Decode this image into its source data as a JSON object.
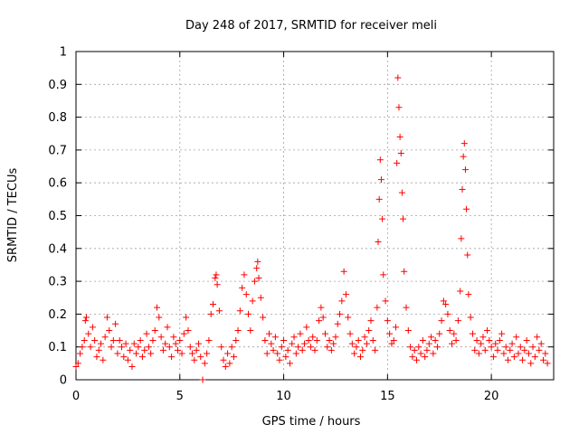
{
  "chart_data": {
    "type": "scatter",
    "title": "Day 248 of 2017, SRMTID for receiver meli",
    "xlabel": "GPS time / hours",
    "ylabel": "SRMTID / TECUs",
    "xlim": [
      0,
      23
    ],
    "ylim": [
      0,
      1
    ],
    "x_ticks": [
      0,
      5,
      10,
      15,
      20
    ],
    "x_tick_labels": [
      "0",
      "5",
      "10",
      "15",
      "20"
    ],
    "y_ticks": [
      0,
      0.1,
      0.2,
      0.3,
      0.4,
      0.5,
      0.6,
      0.7,
      0.8,
      0.9,
      1
    ],
    "y_tick_labels": [
      "0",
      "0.1",
      "0.2",
      "0.3",
      "0.4",
      "0.5",
      "0.6",
      "0.7",
      "0.8",
      "0.9",
      "1"
    ],
    "grid": true,
    "marker": "+",
    "color": "#ff0000",
    "series": [
      {
        "name": "SRMTID",
        "points": [
          [
            0.0,
            0.04
          ],
          [
            0.1,
            0.05
          ],
          [
            0.2,
            0.08
          ],
          [
            0.3,
            0.1
          ],
          [
            0.4,
            0.12
          ],
          [
            0.45,
            0.18
          ],
          [
            0.5,
            0.19
          ],
          [
            0.6,
            0.14
          ],
          [
            0.7,
            0.1
          ],
          [
            0.8,
            0.16
          ],
          [
            0.9,
            0.12
          ],
          [
            1.0,
            0.07
          ],
          [
            1.1,
            0.09
          ],
          [
            1.2,
            0.11
          ],
          [
            1.3,
            0.06
          ],
          [
            1.4,
            0.13
          ],
          [
            1.5,
            0.19
          ],
          [
            1.6,
            0.15
          ],
          [
            1.7,
            0.1
          ],
          [
            1.8,
            0.12
          ],
          [
            1.9,
            0.17
          ],
          [
            2.0,
            0.08
          ],
          [
            2.1,
            0.12
          ],
          [
            2.2,
            0.1
          ],
          [
            2.3,
            0.07
          ],
          [
            2.4,
            0.11
          ],
          [
            2.5,
            0.06
          ],
          [
            2.6,
            0.09
          ],
          [
            2.7,
            0.04
          ],
          [
            2.8,
            0.11
          ],
          [
            2.9,
            0.08
          ],
          [
            3.0,
            0.1
          ],
          [
            3.1,
            0.12
          ],
          [
            3.2,
            0.07
          ],
          [
            3.3,
            0.09
          ],
          [
            3.4,
            0.14
          ],
          [
            3.5,
            0.1
          ],
          [
            3.6,
            0.08
          ],
          [
            3.7,
            0.12
          ],
          [
            3.8,
            0.15
          ],
          [
            3.9,
            0.22
          ],
          [
            4.0,
            0.19
          ],
          [
            4.1,
            0.13
          ],
          [
            4.2,
            0.09
          ],
          [
            4.3,
            0.11
          ],
          [
            4.4,
            0.16
          ],
          [
            4.5,
            0.1
          ],
          [
            4.6,
            0.07
          ],
          [
            4.7,
            0.13
          ],
          [
            4.8,
            0.11
          ],
          [
            4.9,
            0.09
          ],
          [
            5.0,
            0.12
          ],
          [
            5.1,
            0.08
          ],
          [
            5.2,
            0.14
          ],
          [
            5.3,
            0.19
          ],
          [
            5.4,
            0.15
          ],
          [
            5.5,
            0.1
          ],
          [
            5.6,
            0.08
          ],
          [
            5.7,
            0.06
          ],
          [
            5.8,
            0.09
          ],
          [
            5.9,
            0.11
          ],
          [
            6.0,
            0.07
          ],
          [
            6.1,
            0.0
          ],
          [
            6.2,
            0.05
          ],
          [
            6.3,
            0.08
          ],
          [
            6.4,
            0.12
          ],
          [
            6.5,
            0.2
          ],
          [
            6.6,
            0.23
          ],
          [
            6.7,
            0.31
          ],
          [
            6.75,
            0.32
          ],
          [
            6.8,
            0.29
          ],
          [
            6.9,
            0.21
          ],
          [
            7.0,
            0.1
          ],
          [
            7.1,
            0.06
          ],
          [
            7.2,
            0.04
          ],
          [
            7.3,
            0.08
          ],
          [
            7.4,
            0.05
          ],
          [
            7.5,
            0.1
          ],
          [
            7.6,
            0.07
          ],
          [
            7.7,
            0.12
          ],
          [
            7.8,
            0.15
          ],
          [
            7.9,
            0.21
          ],
          [
            8.0,
            0.28
          ],
          [
            8.1,
            0.32
          ],
          [
            8.2,
            0.26
          ],
          [
            8.3,
            0.2
          ],
          [
            8.4,
            0.15
          ],
          [
            8.5,
            0.24
          ],
          [
            8.6,
            0.3
          ],
          [
            8.7,
            0.34
          ],
          [
            8.75,
            0.36
          ],
          [
            8.8,
            0.31
          ],
          [
            8.9,
            0.25
          ],
          [
            9.0,
            0.19
          ],
          [
            9.1,
            0.12
          ],
          [
            9.2,
            0.08
          ],
          [
            9.3,
            0.14
          ],
          [
            9.4,
            0.11
          ],
          [
            9.5,
            0.09
          ],
          [
            9.6,
            0.13
          ],
          [
            9.7,
            0.08
          ],
          [
            9.8,
            0.06
          ],
          [
            9.9,
            0.1
          ],
          [
            10.0,
            0.12
          ],
          [
            10.1,
            0.07
          ],
          [
            10.2,
            0.09
          ],
          [
            10.3,
            0.05
          ],
          [
            10.4,
            0.11
          ],
          [
            10.5,
            0.13
          ],
          [
            10.6,
            0.08
          ],
          [
            10.7,
            0.1
          ],
          [
            10.8,
            0.14
          ],
          [
            10.9,
            0.09
          ],
          [
            11.0,
            0.11
          ],
          [
            11.1,
            0.16
          ],
          [
            11.2,
            0.12
          ],
          [
            11.3,
            0.1
          ],
          [
            11.4,
            0.13
          ],
          [
            11.5,
            0.09
          ],
          [
            11.6,
            0.12
          ],
          [
            11.7,
            0.18
          ],
          [
            11.8,
            0.22
          ],
          [
            11.9,
            0.19
          ],
          [
            12.0,
            0.14
          ],
          [
            12.1,
            0.1
          ],
          [
            12.2,
            0.12
          ],
          [
            12.3,
            0.09
          ],
          [
            12.4,
            0.11
          ],
          [
            12.5,
            0.13
          ],
          [
            12.6,
            0.17
          ],
          [
            12.7,
            0.2
          ],
          [
            12.8,
            0.24
          ],
          [
            12.9,
            0.33
          ],
          [
            13.0,
            0.26
          ],
          [
            13.1,
            0.19
          ],
          [
            13.2,
            0.14
          ],
          [
            13.3,
            0.11
          ],
          [
            13.4,
            0.08
          ],
          [
            13.5,
            0.1
          ],
          [
            13.6,
            0.12
          ],
          [
            13.7,
            0.07
          ],
          [
            13.8,
            0.09
          ],
          [
            13.9,
            0.13
          ],
          [
            14.0,
            0.11
          ],
          [
            14.1,
            0.15
          ],
          [
            14.2,
            0.18
          ],
          [
            14.3,
            0.12
          ],
          [
            14.4,
            0.09
          ],
          [
            14.5,
            0.22
          ],
          [
            14.55,
            0.42
          ],
          [
            14.6,
            0.55
          ],
          [
            14.65,
            0.67
          ],
          [
            14.7,
            0.61
          ],
          [
            14.75,
            0.49
          ],
          [
            14.8,
            0.32
          ],
          [
            14.9,
            0.24
          ],
          [
            15.0,
            0.18
          ],
          [
            15.1,
            0.14
          ],
          [
            15.2,
            0.11
          ],
          [
            15.3,
            0.12
          ],
          [
            15.4,
            0.16
          ],
          [
            15.45,
            0.66
          ],
          [
            15.5,
            0.92
          ],
          [
            15.55,
            0.83
          ],
          [
            15.6,
            0.74
          ],
          [
            15.65,
            0.69
          ],
          [
            15.7,
            0.57
          ],
          [
            15.75,
            0.49
          ],
          [
            15.8,
            0.33
          ],
          [
            15.9,
            0.22
          ],
          [
            16.0,
            0.15
          ],
          [
            16.1,
            0.1
          ],
          [
            16.2,
            0.07
          ],
          [
            16.3,
            0.09
          ],
          [
            16.4,
            0.06
          ],
          [
            16.5,
            0.1
          ],
          [
            16.6,
            0.08
          ],
          [
            16.7,
            0.12
          ],
          [
            16.8,
            0.07
          ],
          [
            16.9,
            0.09
          ],
          [
            17.0,
            0.11
          ],
          [
            17.1,
            0.13
          ],
          [
            17.2,
            0.08
          ],
          [
            17.3,
            0.12
          ],
          [
            17.4,
            0.1
          ],
          [
            17.5,
            0.14
          ],
          [
            17.6,
            0.18
          ],
          [
            17.7,
            0.24
          ],
          [
            17.8,
            0.23
          ],
          [
            17.9,
            0.2
          ],
          [
            18.0,
            0.15
          ],
          [
            18.1,
            0.11
          ],
          [
            18.2,
            0.14
          ],
          [
            18.3,
            0.12
          ],
          [
            18.4,
            0.18
          ],
          [
            18.5,
            0.27
          ],
          [
            18.55,
            0.43
          ],
          [
            18.6,
            0.58
          ],
          [
            18.65,
            0.68
          ],
          [
            18.7,
            0.72
          ],
          [
            18.75,
            0.64
          ],
          [
            18.8,
            0.52
          ],
          [
            18.85,
            0.38
          ],
          [
            18.9,
            0.26
          ],
          [
            19.0,
            0.19
          ],
          [
            19.1,
            0.14
          ],
          [
            19.2,
            0.09
          ],
          [
            19.3,
            0.12
          ],
          [
            19.4,
            0.08
          ],
          [
            19.5,
            0.11
          ],
          [
            19.6,
            0.13
          ],
          [
            19.7,
            0.09
          ],
          [
            19.8,
            0.15
          ],
          [
            19.9,
            0.12
          ],
          [
            20.0,
            0.1
          ],
          [
            20.1,
            0.07
          ],
          [
            20.2,
            0.11
          ],
          [
            20.3,
            0.09
          ],
          [
            20.4,
            0.12
          ],
          [
            20.5,
            0.14
          ],
          [
            20.6,
            0.08
          ],
          [
            20.7,
            0.1
          ],
          [
            20.8,
            0.06
          ],
          [
            20.9,
            0.09
          ],
          [
            21.0,
            0.11
          ],
          [
            21.1,
            0.07
          ],
          [
            21.2,
            0.13
          ],
          [
            21.3,
            0.08
          ],
          [
            21.4,
            0.1
          ],
          [
            21.5,
            0.06
          ],
          [
            21.6,
            0.09
          ],
          [
            21.7,
            0.12
          ],
          [
            21.8,
            0.08
          ],
          [
            21.9,
            0.05
          ],
          [
            22.0,
            0.1
          ],
          [
            22.1,
            0.07
          ],
          [
            22.2,
            0.13
          ],
          [
            22.3,
            0.09
          ],
          [
            22.4,
            0.11
          ],
          [
            22.5,
            0.06
          ],
          [
            22.6,
            0.08
          ],
          [
            22.7,
            0.05
          ]
        ]
      }
    ]
  }
}
